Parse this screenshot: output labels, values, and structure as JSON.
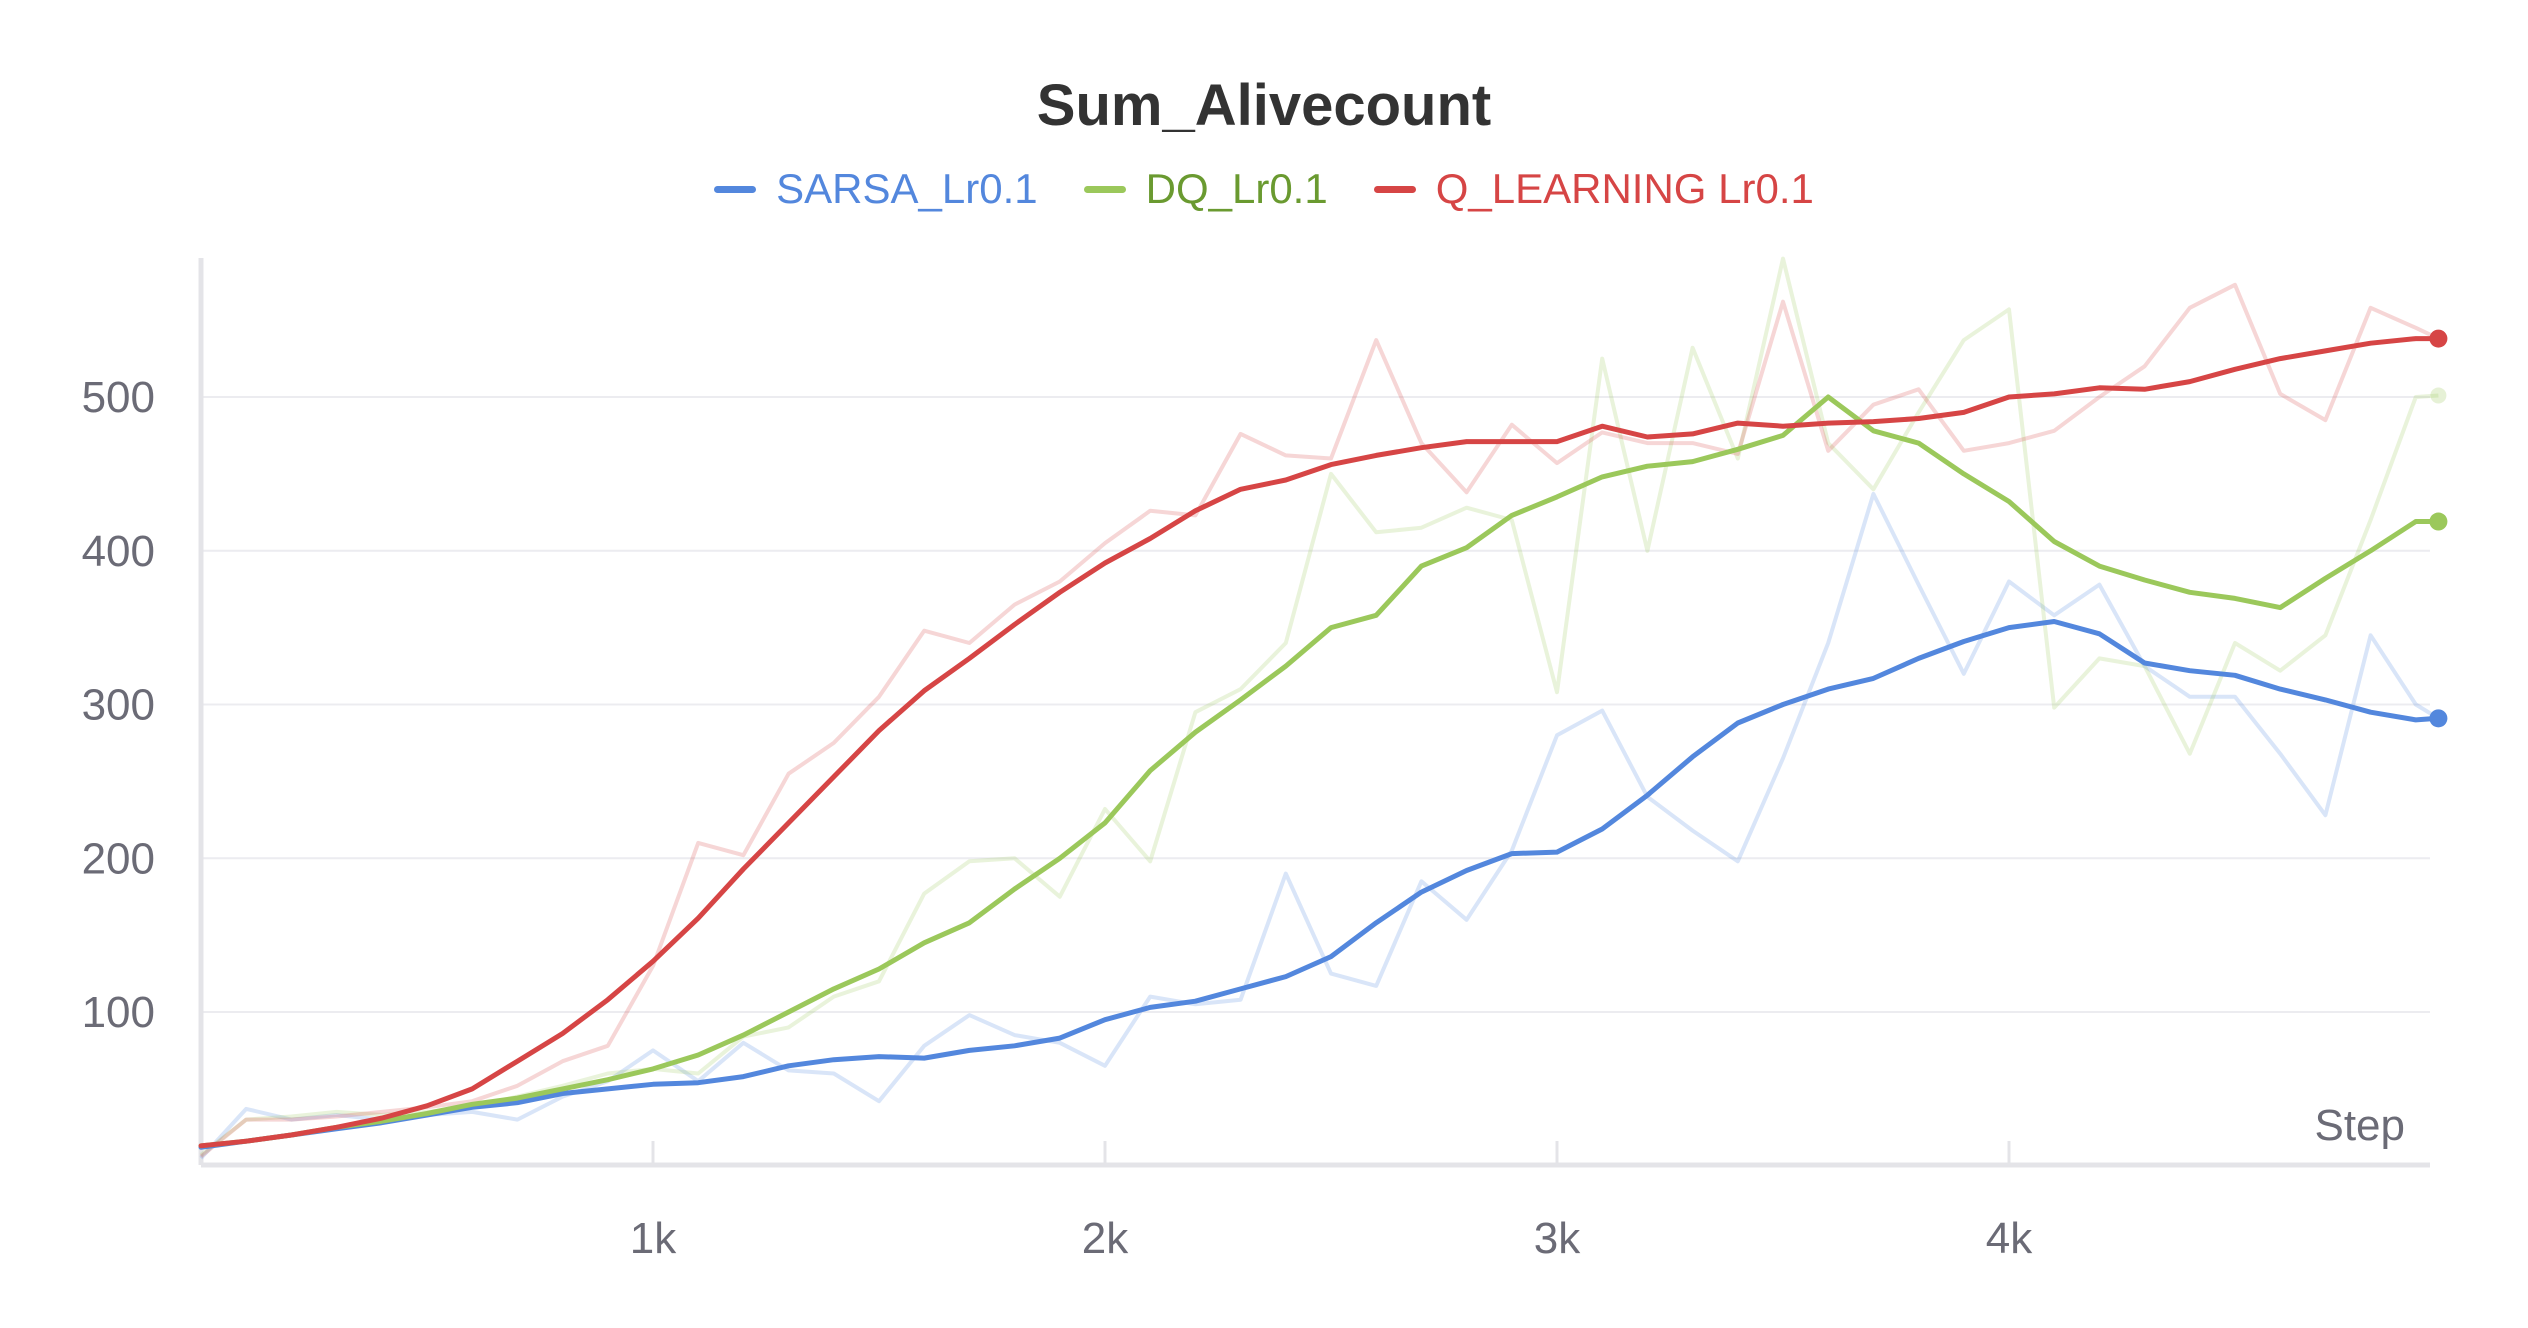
{
  "chart_data": {
    "type": "line",
    "title": "Sum_Alivecount",
    "xlabel": "Step",
    "ylabel": "",
    "xlim": [
      0,
      4950
    ],
    "ylim": [
      0,
      560
    ],
    "x_ticks": [
      1000,
      2000,
      3000,
      4000
    ],
    "x_tick_labels": [
      "1k",
      "2k",
      "3k",
      "4k"
    ],
    "y_ticks": [
      100,
      200,
      300,
      400,
      500
    ],
    "y_tick_labels": [
      "100",
      "200",
      "300",
      "400",
      "500"
    ],
    "grid": "horizontal",
    "legend_position": "top-center",
    "x": [
      0,
      100,
      200,
      300,
      400,
      500,
      600,
      700,
      800,
      900,
      1000,
      1100,
      1200,
      1300,
      1400,
      1500,
      1600,
      1700,
      1800,
      1900,
      2000,
      2100,
      2200,
      2300,
      2400,
      2500,
      2600,
      2700,
      2800,
      2900,
      3000,
      3100,
      3200,
      3300,
      3400,
      3500,
      3600,
      3700,
      3800,
      3900,
      4000,
      4100,
      4200,
      4300,
      4400,
      4500,
      4600,
      4700,
      4800,
      4900,
      4950
    ],
    "series": [
      {
        "name": "SARSA_Lr0.1",
        "color": "#5387dd",
        "values": [
          12,
          16,
          20,
          24,
          28,
          33,
          38,
          41,
          47,
          50,
          53,
          54,
          58,
          65,
          69,
          71,
          70,
          75,
          78,
          83,
          95,
          103,
          107,
          115,
          123,
          136,
          158,
          178,
          192,
          203,
          204,
          219,
          241,
          266,
          288,
          300,
          310,
          317,
          330,
          341,
          350,
          354,
          346,
          327,
          322,
          319,
          310,
          303,
          295,
          290,
          291
        ],
        "raw_values": [
          5,
          37,
          30,
          33,
          30,
          33,
          35,
          30,
          45,
          55,
          75,
          55,
          80,
          62,
          60,
          42,
          78,
          98,
          85,
          80,
          65,
          110,
          105,
          108,
          190,
          125,
          117,
          185,
          160,
          205,
          280,
          296,
          240,
          218,
          198,
          265,
          340,
          437,
          378,
          320,
          380,
          358,
          378,
          325,
          305,
          305,
          268,
          228,
          345,
          300,
          291
        ]
      },
      {
        "name": "DQ_Lr0.1",
        "color": "#9bc85b",
        "values": [
          13,
          16,
          20,
          25,
          29,
          34,
          40,
          44,
          50,
          56,
          63,
          72,
          85,
          100,
          115,
          128,
          145,
          158,
          180,
          200,
          223,
          257,
          282,
          303,
          325,
          350,
          358,
          390,
          402,
          423,
          435,
          448,
          455,
          458,
          466,
          475,
          500,
          478,
          470,
          450,
          432,
          406,
          390,
          381,
          373,
          369,
          363,
          382,
          400,
          419,
          419
        ],
        "raw_values": [
          7,
          30,
          32,
          35,
          33,
          35,
          38,
          45,
          52,
          60,
          63,
          60,
          84,
          90,
          110,
          120,
          177,
          198,
          200,
          175,
          232,
          198,
          295,
          310,
          340,
          450,
          412,
          415,
          428,
          420,
          308,
          525,
          400,
          532,
          460,
          590,
          470,
          440,
          490,
          537,
          557,
          298,
          330,
          325,
          268,
          340,
          322,
          345,
          420,
          500,
          501
        ]
      },
      {
        "name": "Q_LEARNING Lr0.1",
        "color": "#d64545",
        "values": [
          13,
          16,
          20,
          25,
          31,
          39,
          50,
          68,
          86,
          108,
          133,
          161,
          193,
          223,
          253,
          283,
          309,
          330,
          352,
          373,
          392,
          408,
          426,
          440,
          446,
          456,
          462,
          467,
          471,
          471,
          471,
          481,
          474,
          476,
          483,
          481,
          483,
          484,
          486,
          490,
          500,
          502,
          506,
          505,
          510,
          518,
          525,
          530,
          535,
          538,
          538
        ],
        "raw_values": [
          6,
          30,
          30,
          32,
          35,
          38,
          42,
          52,
          68,
          78,
          130,
          210,
          202,
          255,
          275,
          305,
          348,
          340,
          365,
          380,
          405,
          426,
          423,
          476,
          462,
          460,
          537,
          470,
          438,
          482,
          457,
          477,
          470,
          470,
          463,
          562,
          465,
          495,
          505,
          465,
          470,
          478,
          500,
          520,
          558,
          573,
          502,
          485,
          558,
          545,
          538
        ]
      }
    ]
  }
}
